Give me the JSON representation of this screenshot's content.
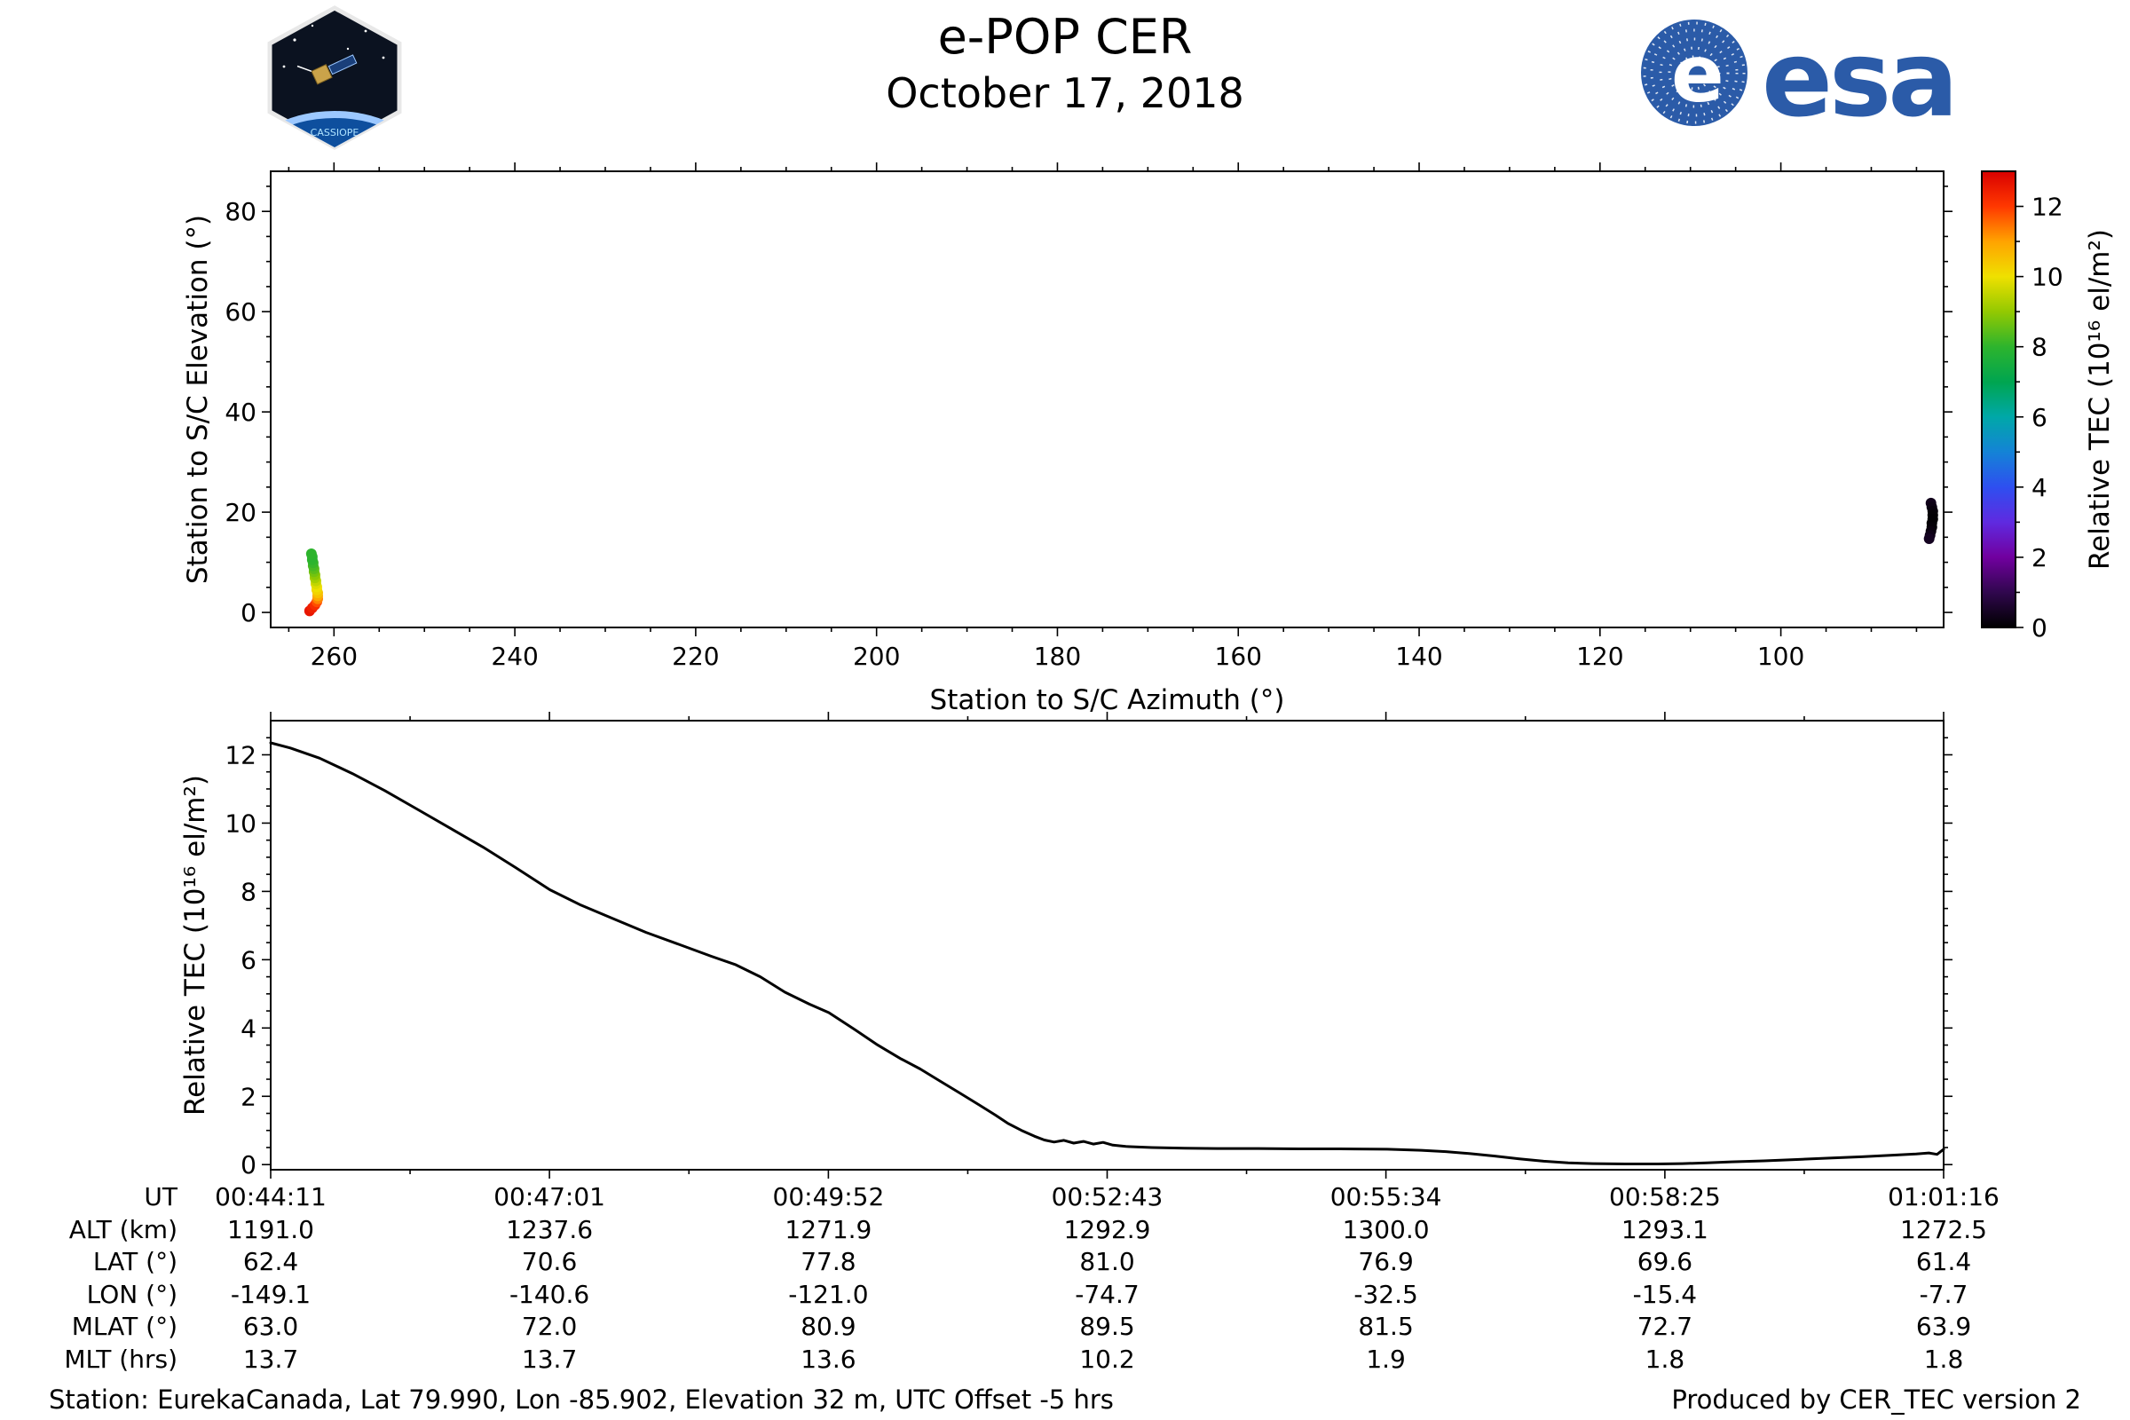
{
  "header": {
    "title": "e-POP CER",
    "date": "October 17, 2018",
    "esa_wordmark": "esa",
    "patch_label": "CASSIOPE"
  },
  "footer": {
    "station_info": "Station: EurekaCanada, Lat 79.990, Lon -85.902, Elevation 32 m, UTC Offset -5 hrs",
    "produced_by": "Produced by CER_TEC version 2"
  },
  "colors": {
    "esa_blue": "#2b5ba8",
    "plot_line": "#000000",
    "background": "#ffffff"
  },
  "colorbar": {
    "label": "Relative TEC (10¹⁶ el/m²)",
    "ticks": [
      0,
      2,
      4,
      6,
      8,
      10,
      12
    ],
    "range": [
      0,
      13
    ],
    "colormap": [
      {
        "value": 0,
        "color": "#000000"
      },
      {
        "value": 1,
        "color": "#30074e"
      },
      {
        "value": 2,
        "color": "#71009f"
      },
      {
        "value": 3,
        "color": "#5f2ae0"
      },
      {
        "value": 4,
        "color": "#2e4ff0"
      },
      {
        "value": 5,
        "color": "#1483d6"
      },
      {
        "value": 6,
        "color": "#00a8a8"
      },
      {
        "value": 7,
        "color": "#00a550"
      },
      {
        "value": 8,
        "color": "#2db42d"
      },
      {
        "value": 9,
        "color": "#93c901"
      },
      {
        "value": 10,
        "color": "#efe000"
      },
      {
        "value": 11,
        "color": "#ffa300"
      },
      {
        "value": 12,
        "color": "#ff3800"
      },
      {
        "value": 13,
        "color": "#d90000"
      }
    ]
  },
  "chart_data": [
    {
      "id": "elevation-azimuth-track",
      "type": "scatter",
      "xlabel": "Station to S/C Azimuth (°)",
      "ylabel": "Station to S/C Elevation (°)",
      "xlim": [
        267,
        82
      ],
      "x_inverted": true,
      "ylim": [
        -3,
        88
      ],
      "x_ticks": [
        260,
        240,
        220,
        200,
        180,
        160,
        140,
        120,
        100
      ],
      "y_ticks": [
        0,
        20,
        40,
        60,
        80
      ],
      "color_by": "tec",
      "points": [
        {
          "az": 262.7,
          "el": 0.3,
          "tec": 12.6
        },
        {
          "az": 262.4,
          "el": 0.9,
          "tec": 12.45
        },
        {
          "az": 262.1,
          "el": 1.5,
          "tec": 12.2
        },
        {
          "az": 261.9,
          "el": 2.1,
          "tec": 11.8
        },
        {
          "az": 261.8,
          "el": 2.7,
          "tec": 11.3
        },
        {
          "az": 261.8,
          "el": 3.3,
          "tec": 10.9
        },
        {
          "az": 261.8,
          "el": 3.9,
          "tec": 10.5
        },
        {
          "az": 261.9,
          "el": 4.5,
          "tec": 10.2
        },
        {
          "az": 261.9,
          "el": 5.1,
          "tec": 10.0
        },
        {
          "az": 262.0,
          "el": 5.7,
          "tec": 9.8
        },
        {
          "az": 262.0,
          "el": 6.3,
          "tec": 9.5
        },
        {
          "az": 262.1,
          "el": 6.9,
          "tec": 9.2
        },
        {
          "az": 262.1,
          "el": 7.5,
          "tec": 8.95
        },
        {
          "az": 262.2,
          "el": 8.1,
          "tec": 8.7
        },
        {
          "az": 262.2,
          "el": 8.7,
          "tec": 8.45
        },
        {
          "az": 262.3,
          "el": 9.3,
          "tec": 8.25
        },
        {
          "az": 262.3,
          "el": 9.9,
          "tec": 8.1
        },
        {
          "az": 262.4,
          "el": 10.5,
          "tec": 8.0
        },
        {
          "az": 262.4,
          "el": 11.1,
          "tec": 7.95
        },
        {
          "az": 262.5,
          "el": 11.7,
          "tec": 8.0
        },
        {
          "az": 83.4,
          "el": 21.8,
          "tec": 0.35
        },
        {
          "az": 83.3,
          "el": 21.0,
          "tec": 0.25
        },
        {
          "az": 83.2,
          "el": 20.2,
          "tec": 0.15
        },
        {
          "az": 83.2,
          "el": 19.4,
          "tec": 0.08
        },
        {
          "az": 83.2,
          "el": 18.6,
          "tec": 0.05
        },
        {
          "az": 83.3,
          "el": 17.8,
          "tec": 0.05
        },
        {
          "az": 83.3,
          "el": 17.0,
          "tec": 0.1
        },
        {
          "az": 83.4,
          "el": 16.2,
          "tec": 0.18
        },
        {
          "az": 83.5,
          "el": 15.4,
          "tec": 0.3
        },
        {
          "az": 83.6,
          "el": 14.7,
          "tec": 0.42
        }
      ]
    },
    {
      "id": "tec-timeseries",
      "type": "line",
      "xlabel": "",
      "ylabel": "Relative TEC (10¹⁶ el/m²)",
      "ylim": [
        -0.15,
        13.0
      ],
      "y_ticks": [
        0,
        2,
        4,
        6,
        8,
        10,
        12
      ],
      "x_range_seconds": [
        0,
        1025
      ],
      "x_tick_seconds": [
        0,
        170.8,
        341.7,
        512.5,
        683.3,
        854.2,
        1025
      ],
      "x_tick_labels": [
        "00:44:11",
        "00:47:01",
        "00:49:52",
        "00:52:43",
        "00:55:34",
        "00:58:25",
        "01:01:16"
      ],
      "series": [
        {
          "name": "Relative TEC",
          "points": [
            [
              0,
              12.35
            ],
            [
              12,
              12.2
            ],
            [
              30,
              11.9
            ],
            [
              50,
              11.45
            ],
            [
              70,
              10.95
            ],
            [
              90,
              10.4
            ],
            [
              110,
              9.85
            ],
            [
              130,
              9.3
            ],
            [
              150,
              8.7
            ],
            [
              171,
              8.05
            ],
            [
              190,
              7.6
            ],
            [
              210,
              7.2
            ],
            [
              230,
              6.8
            ],
            [
              250,
              6.45
            ],
            [
              270,
              6.1
            ],
            [
              285,
              5.85
            ],
            [
              300,
              5.5
            ],
            [
              315,
              5.05
            ],
            [
              330,
              4.7
            ],
            [
              342,
              4.45
            ],
            [
              358,
              3.95
            ],
            [
              372,
              3.5
            ],
            [
              386,
              3.1
            ],
            [
              398,
              2.8
            ],
            [
              410,
              2.45
            ],
            [
              422,
              2.1
            ],
            [
              434,
              1.75
            ],
            [
              444,
              1.45
            ],
            [
              452,
              1.2
            ],
            [
              460,
              1.0
            ],
            [
              468,
              0.83
            ],
            [
              474,
              0.72
            ],
            [
              480,
              0.66
            ],
            [
              486,
              0.71
            ],
            [
              492,
              0.63
            ],
            [
              498,
              0.68
            ],
            [
              504,
              0.6
            ],
            [
              510,
              0.65
            ],
            [
              516,
              0.57
            ],
            [
              524,
              0.53
            ],
            [
              540,
              0.5
            ],
            [
              560,
              0.48
            ],
            [
              580,
              0.47
            ],
            [
              605,
              0.47
            ],
            [
              630,
              0.46
            ],
            [
              655,
              0.46
            ],
            [
              684,
              0.45
            ],
            [
              705,
              0.42
            ],
            [
              720,
              0.38
            ],
            [
              735,
              0.32
            ],
            [
              750,
              0.25
            ],
            [
              765,
              0.17
            ],
            [
              780,
              0.1
            ],
            [
              795,
              0.05
            ],
            [
              810,
              0.03
            ],
            [
              830,
              0.02
            ],
            [
              850,
              0.02
            ],
            [
              865,
              0.03
            ],
            [
              880,
              0.05
            ],
            [
              895,
              0.08
            ],
            [
              915,
              0.11
            ],
            [
              935,
              0.15
            ],
            [
              955,
              0.19
            ],
            [
              975,
              0.23
            ],
            [
              995,
              0.28
            ],
            [
              1008,
              0.31
            ],
            [
              1016,
              0.34
            ],
            [
              1021,
              0.3
            ],
            [
              1025,
              0.45
            ]
          ]
        }
      ]
    }
  ],
  "ephemeris_table": {
    "rows": [
      {
        "label": "UT",
        "values": [
          "00:44:11",
          "00:47:01",
          "00:49:52",
          "00:52:43",
          "00:55:34",
          "00:58:25",
          "01:01:16"
        ]
      },
      {
        "label": "ALT (km)",
        "values": [
          "1191.0",
          "1237.6",
          "1271.9",
          "1292.9",
          "1300.0",
          "1293.1",
          "1272.5"
        ]
      },
      {
        "label": "LAT (°)",
        "values": [
          "62.4",
          "70.6",
          "77.8",
          "81.0",
          "76.9",
          "69.6",
          "61.4"
        ]
      },
      {
        "label": "LON (°)",
        "values": [
          "-149.1",
          "-140.6",
          "-121.0",
          "-74.7",
          "-32.5",
          "-15.4",
          "-7.7"
        ]
      },
      {
        "label": "MLAT (°)",
        "values": [
          "63.0",
          "72.0",
          "80.9",
          "89.5",
          "81.5",
          "72.7",
          "63.9"
        ]
      },
      {
        "label": "MLT (hrs)",
        "values": [
          "13.7",
          "13.7",
          "13.6",
          "10.2",
          "1.9",
          "1.8",
          "1.8"
        ]
      }
    ]
  }
}
